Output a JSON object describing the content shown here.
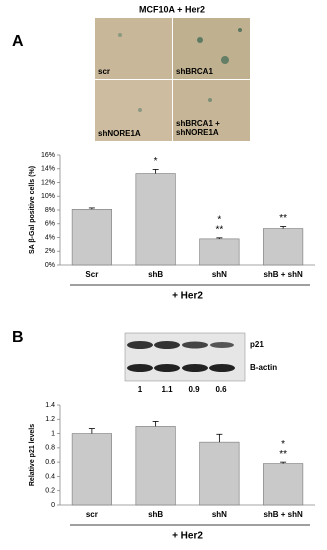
{
  "figure": {
    "panel_a": "A",
    "panel_b": "B",
    "image_title": "MCF10A + Her2",
    "image_labels": [
      "scr",
      "shBRCA1",
      "shNORE1A",
      "shBRCA1 +\nshNORE1A"
    ],
    "blot_labels": [
      "p21",
      "B-actin"
    ],
    "blot_quant": [
      1,
      1.1,
      0.9,
      0.6
    ]
  },
  "chart_data": [
    {
      "type": "bar",
      "ylabel": "SA β-Gal positive cells (%)",
      "xlabel": "+ Her2",
      "categories": [
        "Scr",
        "shB",
        "shN",
        "shB + shN"
      ],
      "values": [
        8.1,
        13.3,
        3.8,
        5.3
      ],
      "errors": [
        0.2,
        0.6,
        0.15,
        0.3
      ],
      "annotations": [
        null,
        [
          "*"
        ],
        [
          "*",
          "**"
        ],
        [
          "**"
        ]
      ],
      "color": "#c9c9c9",
      "ylim": [
        0,
        16
      ],
      "yticks": [
        {
          "value": 0,
          "label": "0%"
        },
        {
          "value": 2,
          "label": "2%"
        },
        {
          "value": 4,
          "label": "4%"
        },
        {
          "value": 6,
          "label": "6%"
        },
        {
          "value": 8,
          "label": "8%"
        },
        {
          "value": 10,
          "label": "10%"
        },
        {
          "value": 12,
          "label": "12%"
        },
        {
          "value": 14,
          "label": "14%"
        },
        {
          "value": 16,
          "label": "16%"
        }
      ]
    },
    {
      "type": "bar",
      "ylabel": "Relative p21 levels",
      "xlabel": "+ Her2",
      "categories": [
        "scr",
        "shB",
        "shN",
        "shB + shN"
      ],
      "values": [
        1.0,
        1.1,
        0.88,
        0.58
      ],
      "errors": [
        0.07,
        0.07,
        0.11,
        0.02
      ],
      "annotations": [
        null,
        null,
        null,
        [
          "*",
          "**"
        ]
      ],
      "color": "#c9c9c9",
      "ylim": [
        0,
        1.4
      ],
      "yticks": [
        0,
        0.2,
        0.4,
        0.6,
        0.8,
        1,
        1.2,
        1.4
      ]
    }
  ]
}
